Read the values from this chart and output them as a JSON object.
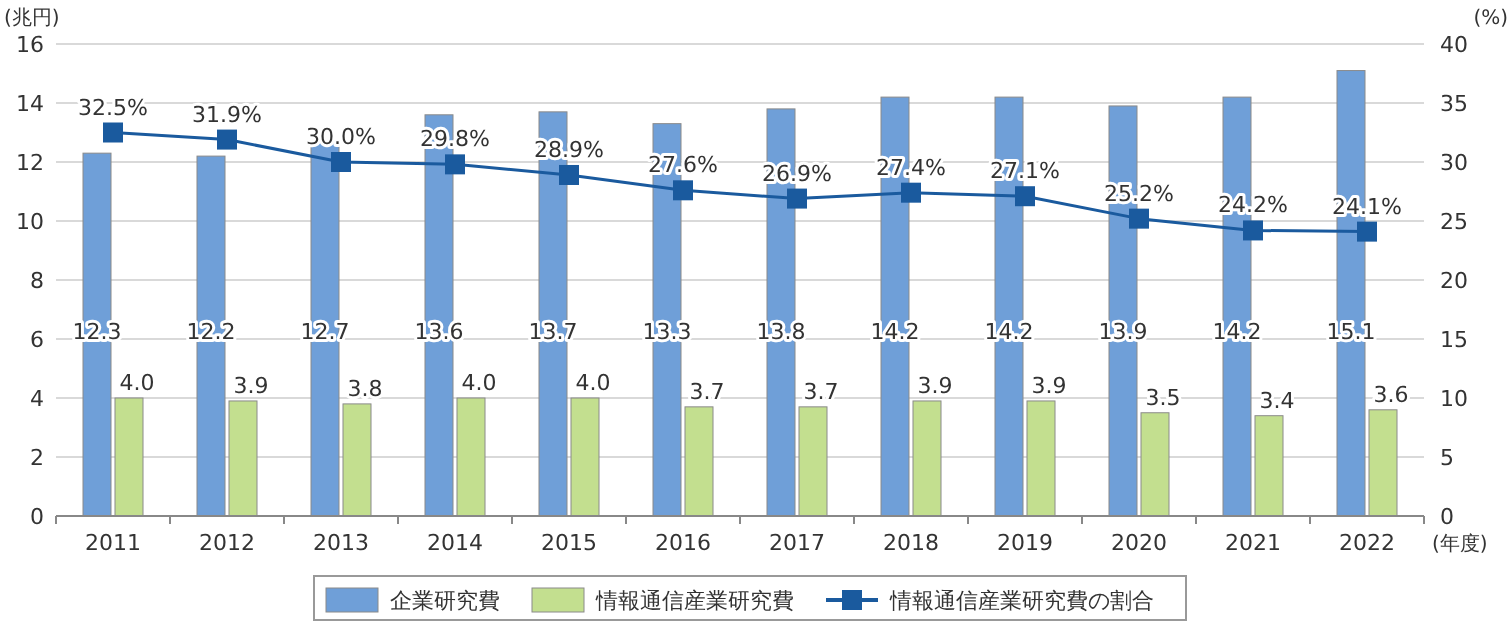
{
  "chart_data": {
    "type": "bar",
    "ylabel": "(兆円)",
    "y2label": "(%)",
    "xlabel": "(年度)",
    "categories": [
      "2011",
      "2012",
      "2013",
      "2014",
      "2015",
      "2016",
      "2017",
      "2018",
      "2019",
      "2020",
      "2021",
      "2022"
    ],
    "series": [
      {
        "name": "企業研究費",
        "color": "#6f9fd8",
        "values": [
          12.3,
          12.2,
          12.7,
          13.6,
          13.7,
          13.3,
          13.8,
          14.2,
          14.2,
          13.9,
          14.2,
          15.1
        ],
        "value_labels": [
          "12.3",
          "12.2",
          "12.7",
          "13.6",
          "13.7",
          "13.3",
          "13.8",
          "14.2",
          "14.2",
          "13.9",
          "14.2",
          "15.1"
        ]
      },
      {
        "name": "情報通信産業研究費",
        "color": "#c3df8f",
        "values": [
          4.0,
          3.9,
          3.8,
          4.0,
          4.0,
          3.7,
          3.7,
          3.9,
          3.9,
          3.5,
          3.4,
          3.6
        ],
        "value_labels": [
          "4.0",
          "3.9",
          "3.8",
          "4.0",
          "4.0",
          "3.7",
          "3.7",
          "3.9",
          "3.9",
          "3.5",
          "3.4",
          "3.6"
        ]
      },
      {
        "name": "情報通信産業研究費の割合",
        "type": "line",
        "axis": "y2",
        "color": "#1a5a9e",
        "marker": "square",
        "values": [
          32.5,
          31.9,
          30.0,
          29.8,
          28.9,
          27.6,
          26.9,
          27.4,
          27.1,
          25.2,
          24.2,
          24.1
        ],
        "value_labels": [
          "32.5%",
          "31.9%",
          "30.0%",
          "29.8%",
          "28.9%",
          "27.6%",
          "26.9%",
          "27.4%",
          "27.1%",
          "25.2%",
          "24.2%",
          "24.1%"
        ]
      }
    ],
    "ylim": [
      0,
      16
    ],
    "yticks": [
      0,
      2,
      4,
      6,
      8,
      10,
      12,
      14,
      16
    ],
    "y2lim": [
      0,
      40
    ],
    "y2ticks": [
      0,
      5,
      10,
      15,
      20,
      25,
      30,
      35,
      40
    ],
    "grid": "y",
    "legend": "bottom"
  }
}
